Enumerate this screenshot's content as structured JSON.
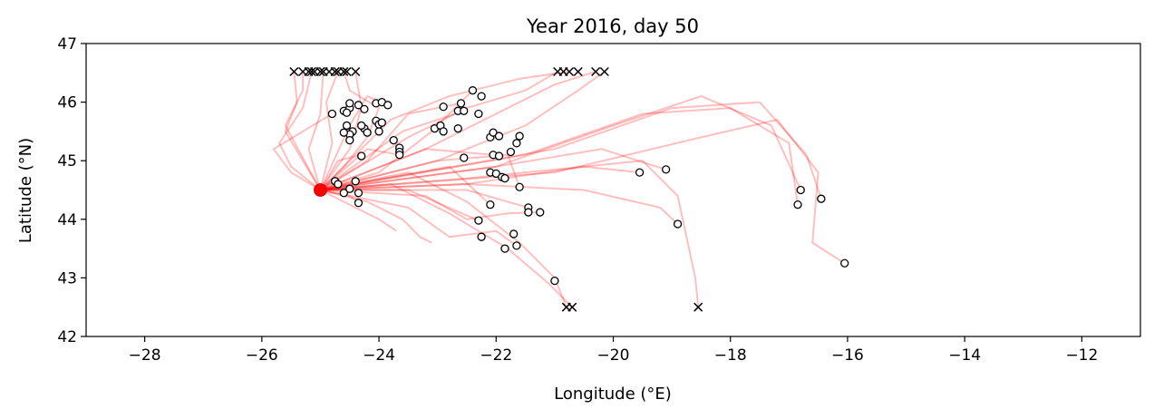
{
  "chart_data": {
    "type": "scatter",
    "title": "Year 2016, day 50",
    "xlabel": "Longitude (°E)",
    "ylabel": "Latitude (°N)",
    "xlim": [
      -29,
      -11
    ],
    "ylim": [
      42,
      47
    ],
    "xticks": [
      -28,
      -26,
      -24,
      -22,
      -20,
      -18,
      -16,
      -14,
      -12
    ],
    "yticks": [
      42,
      43,
      44,
      45,
      46,
      47
    ],
    "grid": false,
    "colors": {
      "trajectory": "#ff0000",
      "release_point": "#ff0000",
      "end_marker": "#000000",
      "particle_face": "#ffffff",
      "particle_edge": "#000000"
    },
    "release_point": {
      "lon": -25.0,
      "lat": 44.5
    },
    "particles": [
      [
        -24.8,
        45.8
      ],
      [
        -24.6,
        45.85
      ],
      [
        -24.5,
        45.9
      ],
      [
        -24.5,
        45.98
      ],
      [
        -24.35,
        45.95
      ],
      [
        -24.05,
        45.98
      ],
      [
        -23.95,
        46.0
      ],
      [
        -23.85,
        45.95
      ],
      [
        -24.55,
        45.6
      ],
      [
        -24.45,
        45.5
      ],
      [
        -24.5,
        45.45
      ],
      [
        -24.6,
        45.48
      ],
      [
        -24.5,
        45.35
      ],
      [
        -24.25,
        45.55
      ],
      [
        -24.2,
        45.48
      ],
      [
        -24.0,
        45.5
      ],
      [
        -24.05,
        45.68
      ],
      [
        -24.0,
        45.62
      ],
      [
        -23.95,
        45.65
      ],
      [
        -23.75,
        45.35
      ],
      [
        -23.65,
        45.22
      ],
      [
        -23.65,
        45.15
      ],
      [
        -23.65,
        45.1
      ],
      [
        -24.3,
        45.08
      ],
      [
        -24.55,
        45.82
      ],
      [
        -24.25,
        45.88
      ],
      [
        -24.3,
        45.6
      ],
      [
        -24.75,
        44.65
      ],
      [
        -24.7,
        44.6
      ],
      [
        -24.6,
        44.45
      ],
      [
        -24.5,
        44.52
      ],
      [
        -24.4,
        44.65
      ],
      [
        -24.35,
        44.45
      ],
      [
        -24.35,
        44.28
      ],
      [
        -23.05,
        45.55
      ],
      [
        -22.95,
        45.6
      ],
      [
        -22.9,
        45.92
      ],
      [
        -22.9,
        45.5
      ],
      [
        -22.65,
        45.85
      ],
      [
        -22.6,
        45.98
      ],
      [
        -22.55,
        45.85
      ],
      [
        -22.65,
        45.55
      ],
      [
        -22.4,
        46.2
      ],
      [
        -22.25,
        46.1
      ],
      [
        -22.3,
        45.8
      ],
      [
        -22.55,
        45.05
      ],
      [
        -22.1,
        45.4
      ],
      [
        -22.05,
        45.48
      ],
      [
        -21.95,
        45.42
      ],
      [
        -22.05,
        45.1
      ],
      [
        -21.95,
        45.08
      ],
      [
        -21.75,
        45.15
      ],
      [
        -21.65,
        45.3
      ],
      [
        -21.6,
        45.42
      ],
      [
        -22.1,
        44.8
      ],
      [
        -22.0,
        44.78
      ],
      [
        -21.9,
        44.72
      ],
      [
        -21.85,
        44.7
      ],
      [
        -21.6,
        44.55
      ],
      [
        -22.1,
        44.25
      ],
      [
        -21.45,
        44.2
      ],
      [
        -21.45,
        44.12
      ],
      [
        -21.25,
        44.12
      ],
      [
        -22.3,
        43.98
      ],
      [
        -21.7,
        43.75
      ],
      [
        -21.65,
        43.55
      ],
      [
        -22.25,
        43.7
      ],
      [
        -21.85,
        43.5
      ],
      [
        -21.0,
        42.95
      ],
      [
        -19.55,
        44.8
      ],
      [
        -19.1,
        44.85
      ],
      [
        -18.9,
        43.92
      ],
      [
        -16.8,
        44.5
      ],
      [
        -16.85,
        44.25
      ],
      [
        -16.45,
        44.35
      ],
      [
        -16.05,
        43.25
      ]
    ],
    "end_markers": [
      [
        -25.45,
        46.52
      ],
      [
        -25.3,
        46.52
      ],
      [
        -25.2,
        46.52
      ],
      [
        -25.15,
        46.52
      ],
      [
        -25.1,
        46.52
      ],
      [
        -25.0,
        46.52
      ],
      [
        -24.95,
        46.52
      ],
      [
        -24.85,
        46.52
      ],
      [
        -24.75,
        46.52
      ],
      [
        -24.7,
        46.52
      ],
      [
        -24.6,
        46.52
      ],
      [
        -24.55,
        46.52
      ],
      [
        -24.4,
        46.52
      ],
      [
        -20.95,
        46.52
      ],
      [
        -20.85,
        46.52
      ],
      [
        -20.75,
        46.52
      ],
      [
        -20.6,
        46.52
      ],
      [
        -20.3,
        46.52
      ],
      [
        -20.15,
        46.52
      ],
      [
        -20.8,
        42.5
      ],
      [
        -20.7,
        42.5
      ],
      [
        -18.55,
        42.5
      ]
    ],
    "trajectories": [
      [
        [
          -25,
          44.5
        ],
        [
          -25.3,
          45.0
        ],
        [
          -25.6,
          45.5
        ],
        [
          -25.4,
          46.0
        ],
        [
          -25.45,
          46.52
        ]
      ],
      [
        [
          -25,
          44.5
        ],
        [
          -25.5,
          44.9
        ],
        [
          -25.7,
          45.3
        ],
        [
          -25.3,
          45.9
        ],
        [
          -25.15,
          46.52
        ]
      ],
      [
        [
          -25,
          44.5
        ],
        [
          -25.2,
          45.2
        ],
        [
          -25.0,
          45.8
        ],
        [
          -24.95,
          46.52
        ]
      ],
      [
        [
          -25,
          44.5
        ],
        [
          -24.8,
          45.3
        ],
        [
          -24.9,
          46.0
        ],
        [
          -24.7,
          46.52
        ]
      ],
      [
        [
          -25,
          44.5
        ],
        [
          -24.5,
          45.2
        ],
        [
          -24.3,
          45.9
        ],
        [
          -24.4,
          46.52
        ]
      ],
      [
        [
          -25,
          44.5
        ],
        [
          -25.6,
          45.6
        ],
        [
          -25.3,
          46.2
        ],
        [
          -25.3,
          46.52
        ]
      ],
      [
        [
          -25,
          44.5
        ],
        [
          -24.6,
          44.9
        ],
        [
          -24.2,
          45.4
        ],
        [
          -24.0,
          45.9
        ],
        [
          -24.5,
          46.2
        ],
        [
          -24.6,
          46.52
        ]
      ],
      [
        [
          -25,
          44.5
        ],
        [
          -23.5,
          45.4
        ],
        [
          -22.5,
          45.9
        ],
        [
          -21.5,
          46.2
        ],
        [
          -20.95,
          46.52
        ]
      ],
      [
        [
          -25,
          44.5
        ],
        [
          -23.8,
          45.7
        ],
        [
          -22.8,
          46.1
        ],
        [
          -21.6,
          46.4
        ],
        [
          -20.75,
          46.52
        ]
      ],
      [
        [
          -25,
          44.5
        ],
        [
          -23.2,
          45.2
        ],
        [
          -22.0,
          45.8
        ],
        [
          -21.0,
          46.3
        ],
        [
          -20.3,
          46.52
        ]
      ],
      [
        [
          -25,
          44.5
        ],
        [
          -23.0,
          45.0
        ],
        [
          -21.5,
          45.6
        ],
        [
          -20.6,
          46.2
        ],
        [
          -20.15,
          46.52
        ]
      ],
      [
        [
          -25,
          44.5
        ],
        [
          -23.5,
          44.8
        ],
        [
          -22.5,
          44.3
        ],
        [
          -21.6,
          43.6
        ],
        [
          -21.0,
          43.0
        ],
        [
          -20.8,
          42.5
        ]
      ],
      [
        [
          -25,
          44.5
        ],
        [
          -23.8,
          44.6
        ],
        [
          -22.8,
          44.1
        ],
        [
          -21.8,
          43.5
        ],
        [
          -21.1,
          42.9
        ],
        [
          -20.7,
          42.5
        ]
      ],
      [
        [
          -25,
          44.5
        ],
        [
          -22.5,
          44.6
        ],
        [
          -20.5,
          44.9
        ],
        [
          -19.5,
          45.0
        ],
        [
          -18.9,
          44.4
        ],
        [
          -18.6,
          43.0
        ],
        [
          -18.55,
          42.5
        ]
      ],
      [
        [
          -25,
          44.5
        ],
        [
          -22.0,
          44.9
        ],
        [
          -20.0,
          45.6
        ],
        [
          -18.5,
          46.1
        ],
        [
          -17.3,
          45.6
        ],
        [
          -16.8,
          44.5
        ]
      ],
      [
        [
          -25,
          44.5
        ],
        [
          -21.5,
          45.1
        ],
        [
          -19.5,
          45.8
        ],
        [
          -18.0,
          45.9
        ],
        [
          -17.0,
          45.3
        ],
        [
          -16.85,
          44.25
        ]
      ],
      [
        [
          -25,
          44.5
        ],
        [
          -21.0,
          45.2
        ],
        [
          -19.0,
          45.9
        ],
        [
          -17.5,
          46.0
        ],
        [
          -16.7,
          45.1
        ],
        [
          -16.45,
          44.35
        ]
      ],
      [
        [
          -25,
          44.5
        ],
        [
          -21.0,
          44.8
        ],
        [
          -18.5,
          45.4
        ],
        [
          -17.2,
          45.7
        ],
        [
          -16.5,
          44.8
        ],
        [
          -16.6,
          43.6
        ],
        [
          -16.05,
          43.25
        ]
      ],
      [
        [
          -25,
          44.5
        ],
        [
          -22.5,
          44.7
        ],
        [
          -20.5,
          44.9
        ],
        [
          -19.55,
          44.8
        ]
      ],
      [
        [
          -25,
          44.5
        ],
        [
          -22.0,
          44.9
        ],
        [
          -20.2,
          45.2
        ],
        [
          -19.1,
          44.85
        ]
      ],
      [
        [
          -25,
          44.5
        ],
        [
          -22.5,
          44.6
        ],
        [
          -20.5,
          44.5
        ],
        [
          -19.2,
          44.2
        ],
        [
          -18.9,
          43.92
        ]
      ],
      [
        [
          -25,
          44.5
        ],
        [
          -23.5,
          44.2
        ],
        [
          -22.8,
          43.7
        ],
        [
          -22.0,
          43.8
        ],
        [
          -21.65,
          43.55
        ]
      ],
      [
        [
          -25,
          44.5
        ],
        [
          -23.2,
          44.4
        ],
        [
          -22.5,
          44.0
        ],
        [
          -21.8,
          44.1
        ],
        [
          -21.25,
          44.12
        ]
      ],
      [
        [
          -25,
          44.5
        ],
        [
          -23.0,
          45.0
        ],
        [
          -21.8,
          45.1
        ],
        [
          -21.6,
          44.55
        ]
      ],
      [
        [
          -25,
          44.5
        ],
        [
          -24.0,
          44.8
        ],
        [
          -23.1,
          45.5
        ],
        [
          -22.4,
          46.2
        ]
      ],
      [
        [
          -25,
          44.5
        ],
        [
          -24.2,
          45.0
        ],
        [
          -23.5,
          45.8
        ],
        [
          -22.6,
          45.98
        ]
      ],
      [
        [
          -25,
          44.5
        ],
        [
          -24.5,
          45.6
        ],
        [
          -24.2,
          46.1
        ],
        [
          -23.85,
          45.95
        ]
      ],
      [
        [
          -25,
          44.5
        ],
        [
          -24.2,
          44.3
        ],
        [
          -23.6,
          44.0
        ],
        [
          -23.3,
          43.7
        ],
        [
          -23.1,
          43.6
        ]
      ],
      [
        [
          -25,
          44.5
        ],
        [
          -24.4,
          44.2
        ],
        [
          -24.0,
          44.0
        ],
        [
          -23.7,
          43.8
        ]
      ],
      [
        [
          -25,
          44.5
        ],
        [
          -24.7,
          45.0
        ],
        [
          -24.3,
          45.1
        ]
      ],
      [
        [
          -25,
          44.5
        ],
        [
          -25.5,
          44.8
        ],
        [
          -25.8,
          45.2
        ],
        [
          -24.8,
          45.8
        ]
      ],
      [
        [
          -25,
          44.5
        ],
        [
          -24.5,
          44.4
        ],
        [
          -24.35,
          44.28
        ]
      ],
      [
        [
          -25,
          44.5
        ],
        [
          -24.2,
          45.2
        ],
        [
          -23.65,
          45.1
        ]
      ],
      [
        [
          -25,
          44.5
        ],
        [
          -23.2,
          45.2
        ],
        [
          -22.05,
          45.1
        ]
      ],
      [
        [
          -25,
          44.5
        ],
        [
          -23.6,
          45.5
        ],
        [
          -22.55,
          45.85
        ]
      ],
      [
        [
          -25,
          44.5
        ],
        [
          -22.8,
          44.9
        ],
        [
          -22.1,
          44.25
        ]
      ],
      [
        [
          -25,
          44.5
        ],
        [
          -22.5,
          44.5
        ],
        [
          -21.45,
          44.2
        ]
      ],
      [
        [
          -25,
          44.5
        ],
        [
          -23.5,
          44.5
        ],
        [
          -22.3,
          43.98
        ]
      ]
    ]
  }
}
